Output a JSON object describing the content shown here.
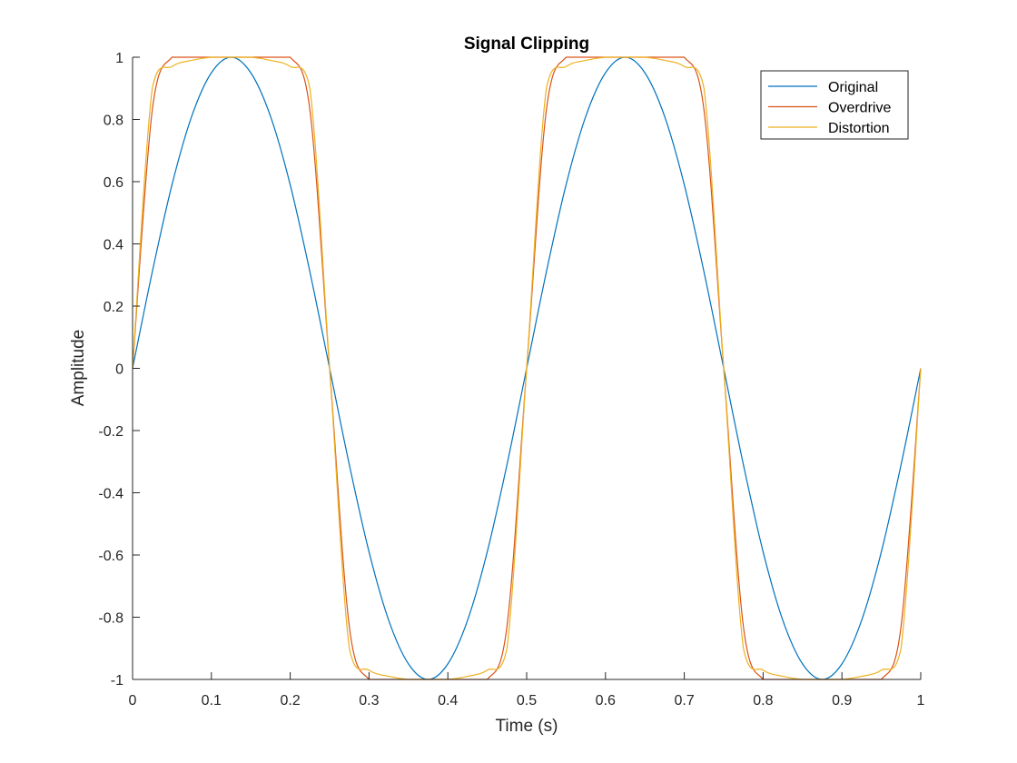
{
  "chart_data": {
    "type": "line",
    "title": "Signal Clipping",
    "xlabel": "Time (s)",
    "ylabel": "Amplitude",
    "xlim": [
      0,
      1
    ],
    "ylim": [
      -1,
      1
    ],
    "xticks": [
      0,
      0.1,
      0.2,
      0.3,
      0.4,
      0.5,
      0.6,
      0.7,
      0.8,
      0.9,
      1
    ],
    "xtick_labels": [
      "0",
      "0.1",
      "0.2",
      "0.3",
      "0.4",
      "0.5",
      "0.6",
      "0.7",
      "0.8",
      "0.9",
      "1"
    ],
    "yticks": [
      -1,
      -0.8,
      -0.6,
      -0.4,
      -0.2,
      0,
      0.2,
      0.4,
      0.6,
      0.8,
      1
    ],
    "ytick_labels": [
      "-1",
      "-0.8",
      "-0.6",
      "-0.4",
      "-0.2",
      "0",
      "0.2",
      "0.4",
      "0.6",
      "0.8",
      "1"
    ],
    "grid": false,
    "legend_position": "top-right",
    "x": [
      0,
      0.025,
      0.05,
      0.075,
      0.1,
      0.125,
      0.15,
      0.175,
      0.2,
      0.225,
      0.25,
      0.275,
      0.3,
      0.325,
      0.35,
      0.375,
      0.4,
      0.425,
      0.45,
      0.475,
      0.5,
      0.525,
      0.55,
      0.575,
      0.6,
      0.625,
      0.65,
      0.675,
      0.7,
      0.725,
      0.75,
      0.775,
      0.8,
      0.825,
      0.85,
      0.875,
      0.9,
      0.925,
      0.95,
      0.975,
      1
    ],
    "series": [
      {
        "name": "Original",
        "color": "#0072BD",
        "values": [
          0,
          0.31,
          0.59,
          0.81,
          0.95,
          1,
          0.95,
          0.81,
          0.59,
          0.31,
          0,
          -0.31,
          -0.59,
          -0.81,
          -0.95,
          -1,
          -0.95,
          -0.81,
          -0.59,
          -0.31,
          0,
          0.31,
          0.59,
          0.81,
          0.95,
          1,
          0.95,
          0.81,
          0.59,
          0.31,
          0,
          -0.31,
          -0.59,
          -0.81,
          -0.95,
          -1,
          -0.95,
          -0.81,
          -0.59,
          -0.31,
          0
        ]
      },
      {
        "name": "Overdrive",
        "color": "#D95319",
        "values": [
          0,
          0.83,
          1,
          1,
          1,
          1,
          1,
          1,
          1,
          0.83,
          0,
          -0.83,
          -1,
          -1,
          -1,
          -1,
          -1,
          -1,
          -1,
          -0.83,
          0,
          0.83,
          1,
          1,
          1,
          1,
          1,
          1,
          1,
          0.83,
          0,
          -0.83,
          -1,
          -1,
          -1,
          -1,
          -1,
          -1,
          -1,
          -0.83,
          0
        ]
      },
      {
        "name": "Distortion",
        "color": "#EDB120",
        "values": [
          0,
          0.9,
          0.97,
          0.99,
          1,
          1,
          1,
          0.99,
          0.97,
          0.9,
          0,
          -0.9,
          -0.97,
          -0.99,
          -1,
          -1,
          -1,
          -0.99,
          -0.97,
          -0.9,
          0,
          0.9,
          0.97,
          0.99,
          1,
          1,
          1,
          0.99,
          0.97,
          0.9,
          0,
          -0.9,
          -0.97,
          -0.99,
          -1,
          -1,
          -1,
          -0.99,
          -0.97,
          -0.9,
          0
        ]
      }
    ]
  }
}
